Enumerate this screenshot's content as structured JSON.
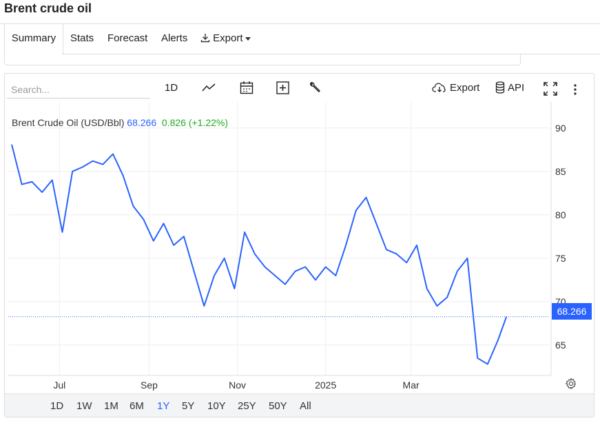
{
  "app": {
    "title": "Brent crude oil"
  },
  "tabs": [
    {
      "label": "Summary",
      "active": true
    },
    {
      "label": "Stats"
    },
    {
      "label": "Forecast"
    },
    {
      "label": "Alerts"
    },
    {
      "label": "Export",
      "icon": "download-icon"
    }
  ],
  "toolbar": {
    "search_placeholder": "Search...",
    "interval": "1D",
    "export_label": "Export",
    "api_label": "API",
    "icons": [
      "line-chart-icon",
      "calendar-icon",
      "add-indicator-icon",
      "wrench-icon",
      "cloud-download-icon",
      "database-icon",
      "fullscreen-icon",
      "more-icon"
    ]
  },
  "legend": {
    "name": "Brent Crude Oil (USD/Bbl)",
    "price": "68.266",
    "change": "0.826 (+1.22%)"
  },
  "colors": {
    "line": "#2962ff",
    "up": "#22aa22",
    "price_tag": "#2962ff",
    "grid": "#eeeeee"
  },
  "range_buttons": [
    "1D",
    "1W",
    "1M",
    "6M",
    "1Y",
    "5Y",
    "10Y",
    "25Y",
    "50Y",
    "All"
  ],
  "active_range": "1Y",
  "chart_data": {
    "type": "line",
    "series": [
      {
        "name": "Brent Crude Oil (USD/Bbl)"
      }
    ],
    "x_tick_labels": [
      "Jul",
      "Sep",
      "Nov",
      "2025",
      "Mar"
    ],
    "y_tick_labels": [
      "90",
      "85",
      "80",
      "75",
      "70",
      "65"
    ],
    "ylim": [
      61.5,
      93
    ],
    "last_value": 68.266,
    "last_value_label": "68.266",
    "grid": true,
    "x": [
      "2024-05-29",
      "2024-06-05",
      "2024-06-12",
      "2024-06-19",
      "2024-06-26",
      "2024-07-03",
      "2024-07-10",
      "2024-07-17",
      "2024-07-24",
      "2024-07-31",
      "2024-08-07",
      "2024-08-14",
      "2024-08-21",
      "2024-08-28",
      "2024-09-04",
      "2024-09-11",
      "2024-09-18",
      "2024-09-25",
      "2024-10-02",
      "2024-10-09",
      "2024-10-16",
      "2024-10-23",
      "2024-10-30",
      "2024-11-06",
      "2024-11-13",
      "2024-11-20",
      "2024-11-27",
      "2024-12-04",
      "2024-12-11",
      "2024-12-18",
      "2024-12-25",
      "2025-01-01",
      "2025-01-08",
      "2025-01-15",
      "2025-01-22",
      "2025-01-29",
      "2025-02-05",
      "2025-02-12",
      "2025-02-19",
      "2025-02-26",
      "2025-03-05",
      "2025-03-12",
      "2025-03-19",
      "2025-03-26",
      "2025-04-02",
      "2025-04-09",
      "2025-04-16",
      "2025-04-23",
      "2025-04-30",
      "2025-05-06"
    ],
    "y": [
      88.1,
      83.5,
      83.8,
      82.6,
      84.0,
      78.0,
      85.0,
      85.5,
      86.2,
      85.8,
      87.0,
      84.5,
      81.0,
      79.5,
      77.0,
      79.0,
      76.5,
      77.5,
      73.5,
      69.5,
      73.0,
      75.0,
      71.5,
      78.0,
      75.5,
      74.0,
      73.0,
      72.0,
      73.5,
      74.0,
      72.5,
      74.0,
      73.0,
      76.5,
      80.5,
      82.0,
      79.0,
      76.0,
      75.5,
      74.5,
      76.5,
      71.5,
      69.5,
      70.5,
      73.5,
      75.0,
      63.5,
      62.8,
      65.5,
      68.266
    ]
  }
}
